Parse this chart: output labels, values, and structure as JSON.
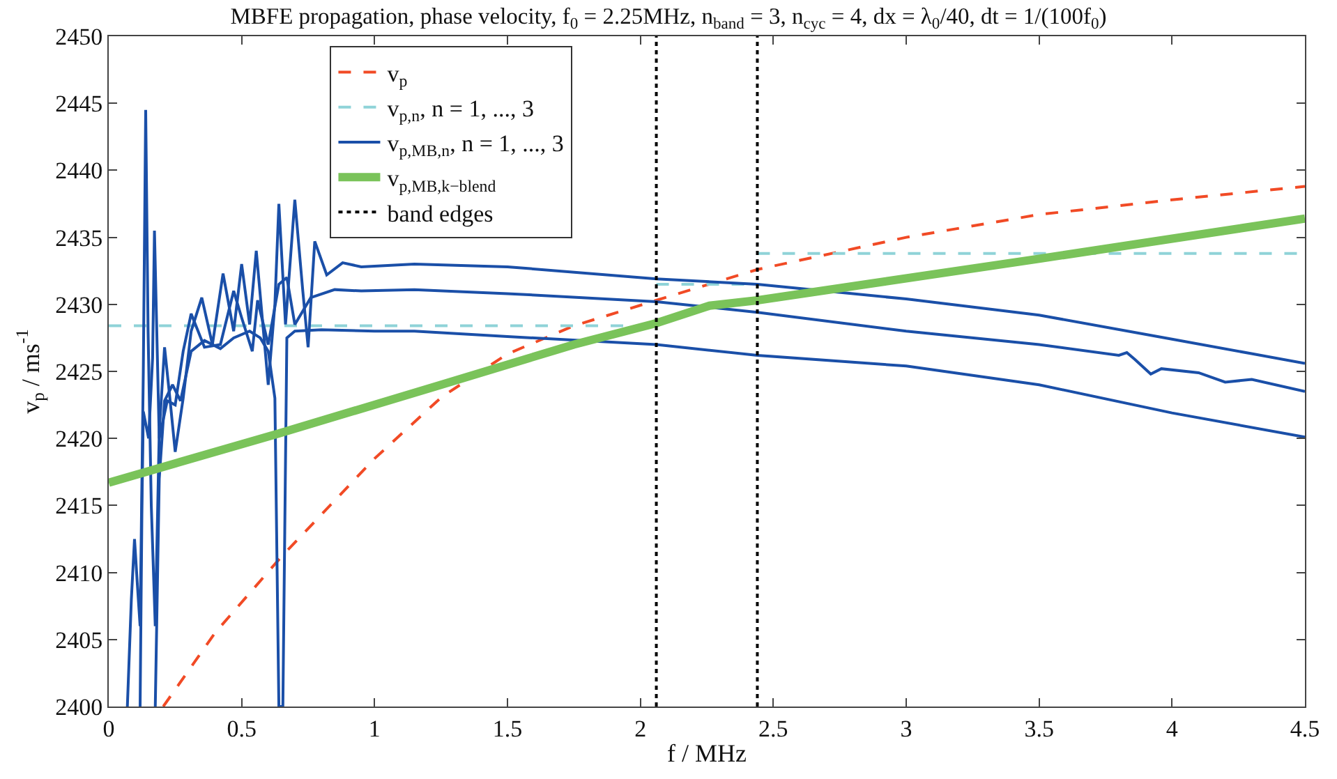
{
  "chart_data": {
    "type": "line",
    "title": "MBFE propagation, phase velocity, f$_{0}$ = 2.25MHz, n$_{band}$ = 3, n$_{cyc}$ = 4, dx = λ$_{0}$/40, dt = 1/(100f$_{0}$)",
    "xlabel": "f / MHz",
    "ylabel": "v$_{p}$ / ms$^{-1}$",
    "xlim": [
      0,
      4.5
    ],
    "xticks": [
      0,
      0.5,
      1,
      1.5,
      2,
      2.5,
      3,
      3.5,
      4,
      4.5
    ],
    "ylim": [
      2400,
      2450
    ],
    "yticks": [
      2400,
      2405,
      2410,
      2415,
      2420,
      2425,
      2430,
      2435,
      2440,
      2445,
      2450
    ],
    "grid": false,
    "legend": "top left",
    "marker": "none",
    "series": [
      {
        "name": "v$_{p}$",
        "color": "#f14a25",
        "line_style": "dashed",
        "x": [
          0.205,
          0.4,
          0.646,
          1.0,
          1.253,
          1.5,
          1.75,
          2.06,
          2.44,
          3.0,
          3.5,
          4.0,
          4.5
        ],
        "values": [
          2400,
          2405.5,
          2411.1,
          2418.5,
          2423.1,
          2426.3,
          2428.4,
          2430.3,
          2432.6,
          2435,
          2436.7,
          2437.8,
          2438.8
        ]
      },
      {
        "name": "v$_{p,n}$, n = 1, ..., 3",
        "color": "#8fd3d8",
        "line_style": "dashed",
        "x": [
          0,
          2.06,
          null,
          2.06,
          2.44,
          null,
          2.44,
          4.5
        ],
        "values": [
          2428.4,
          2428.4,
          null,
          2431.5,
          2431.5,
          null,
          2433.8,
          2433.8
        ]
      },
      {
        "name": "v$_{p,MB,n}$, n = 1, ..., 3",
        "color": "#1a4fa8",
        "line_style": "solid",
        "x": [
          0.07,
          0.085,
          0.097,
          0.108,
          0.118,
          0.13,
          0.139,
          0.148,
          0.16,
          0.175,
          0.19,
          0.21,
          0.23,
          0.25,
          0.28,
          0.31,
          0.35,
          0.39,
          0.43,
          0.47,
          0.5,
          0.53,
          0.555,
          0.6,
          0.625,
          0.64,
          0.665,
          0.7,
          0.73,
          0.75,
          0.775,
          0.82,
          0.88,
          0.95,
          1.15,
          1.5,
          2.06,
          2.44,
          3.0,
          3.5,
          4.0,
          4.5
        ],
        "values": [
          2400,
          2408,
          2412.5,
          2409,
          2406,
          2425,
          2444.5,
          2428,
          2415,
          2406,
          2420.5,
          2426.8,
          2423,
          2419,
          2423,
          2428,
          2430.5,
          2427,
          2432.3,
          2428,
          2433,
          2428.5,
          2434,
          2424,
          2430,
          2437.5,
          2428.5,
          2437.8,
          2431,
          2426.8,
          2434.7,
          2432.2,
          2433.1,
          2432.8,
          2433,
          2432.8,
          2431.9,
          2431.5,
          2430.4,
          2429.2,
          2427.4,
          2425.6
        ]
      },
      {
        "color": "#1a4fa8",
        "line_style": "solid",
        "x": [
          0.118,
          0.125,
          0.13,
          0.14,
          0.15,
          0.165,
          0.172,
          0.19,
          0.22,
          0.25,
          0.28,
          0.31,
          0.36,
          0.42,
          0.47,
          0.5,
          0.54,
          0.56,
          0.6,
          0.64,
          0.67,
          0.7,
          0.76,
          0.85,
          0.95,
          1.15,
          1.5,
          2.06,
          2.44,
          3.0,
          3.5,
          3.8,
          3.83,
          3.86,
          3.92,
          3.96,
          4.1,
          4.2,
          4.3,
          4.5
        ],
        "values": [
          2400,
          2415,
          2422,
          2421,
          2420,
          2426,
          2435.5,
          2420,
          2422.8,
          2422.5,
          2426.5,
          2429.3,
          2426.8,
          2427,
          2431,
          2429,
          2426.5,
          2430.3,
          2427,
          2431.5,
          2432,
          2428.5,
          2430.5,
          2431.1,
          2431,
          2431.1,
          2430.8,
          2430.2,
          2429.4,
          2428,
          2427,
          2426.2,
          2426.4,
          2425.9,
          2424.8,
          2425.2,
          2424.9,
          2424.2,
          2424.4,
          2423.5
        ]
      },
      {
        "color": "#1a4fa8",
        "line_style": "solid",
        "x": [
          0.175,
          0.19,
          0.21,
          0.24,
          0.27,
          0.31,
          0.36,
          0.42,
          0.47,
          0.53,
          0.57,
          0.6,
          0.625,
          0.64,
          0.655,
          0.67,
          0.7,
          0.8,
          1.0,
          1.15,
          1.5,
          2.06,
          2.44,
          3.0,
          3.5,
          4.0,
          4.5
        ],
        "values": [
          2400,
          2417,
          2422.8,
          2424,
          2422.8,
          2426.5,
          2427.3,
          2426.7,
          2427.5,
          2428,
          2427.5,
          2426.5,
          2423,
          2400,
          2400,
          2427.5,
          2428,
          2428.1,
          2428,
          2428,
          2427.6,
          2427,
          2426.2,
          2425.4,
          2424,
          2421.9,
          2420.1
        ]
      },
      {
        "name": "v$_{p,MB,k−blend}$",
        "color": "#7ac35a",
        "line_style": "solid",
        "x": [
          0,
          0.645,
          1.25,
          1.75,
          2.06,
          2.26,
          2.44,
          3.5,
          4.5
        ],
        "values": [
          2416.7,
          2420.4,
          2424,
          2427,
          2428.6,
          2429.9,
          2430.3,
          2433.4,
          2436.4
        ]
      },
      {
        "name": "band edges",
        "color": "#000000",
        "line_style": "dotted",
        "x": [
          2.06,
          2.06,
          null,
          2.44,
          2.44
        ],
        "values": [
          2400,
          2450,
          null,
          2400,
          2450
        ]
      }
    ]
  }
}
